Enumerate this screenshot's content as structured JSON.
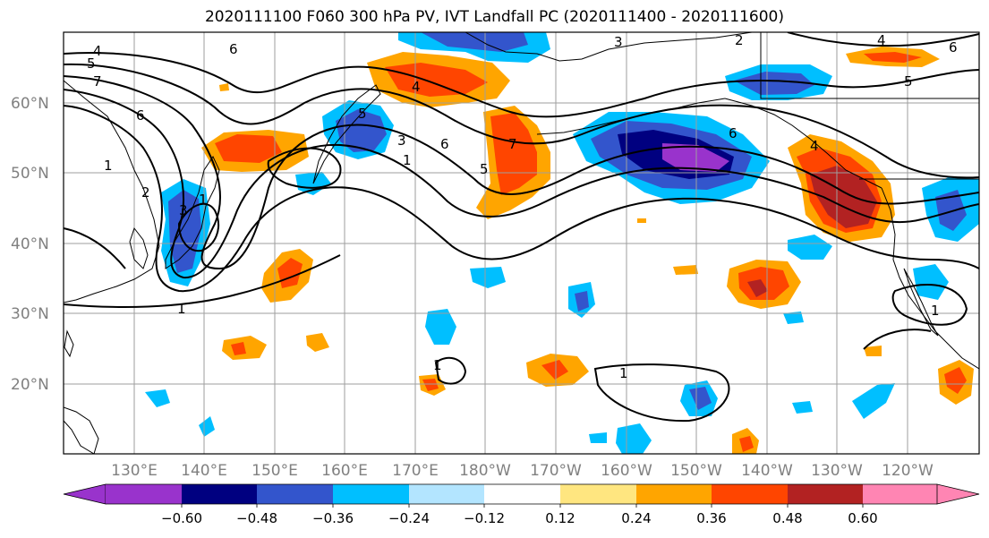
{
  "title": "2020111100 F060 300 hPa PV, IVT Landfall PC (2020111400 - 2020111600)",
  "map": {
    "lat_labels": [
      "60°N",
      "50°N",
      "40°N",
      "30°N",
      "20°N"
    ],
    "lon_labels": [
      "130°E",
      "140°E",
      "150°E",
      "160°E",
      "170°E",
      "180°W",
      "170°W",
      "160°W",
      "150°W",
      "140°W",
      "130°W",
      "120°W"
    ],
    "contour_labels": [
      "4",
      "5",
      "7",
      "6",
      "6",
      "3",
      "2",
      "4",
      "5",
      "6",
      "6",
      "7",
      "4",
      "5",
      "5",
      "3",
      "6",
      "1",
      "1",
      "1",
      "1",
      "1",
      "2",
      "3",
      "1",
      "4",
      "1"
    ],
    "colors": {
      "neg_060": "#9933cc",
      "neg_048": "#000080",
      "neg_036": "#3355cc",
      "neg_024": "#00bfff",
      "neg_012": "#b3e5ff",
      "zero": "#ffffff",
      "pos_012": "#ffe680",
      "pos_024": "#ffa500",
      "pos_036": "#ff4500",
      "pos_048": "#b22222",
      "pos_060": "#ff85b3"
    }
  },
  "colorbar": {
    "ticks": [
      "−0.60",
      "−0.48",
      "−0.36",
      "−0.24",
      "−0.12",
      "0.12",
      "0.24",
      "0.36",
      "0.48",
      "0.60"
    ]
  }
}
